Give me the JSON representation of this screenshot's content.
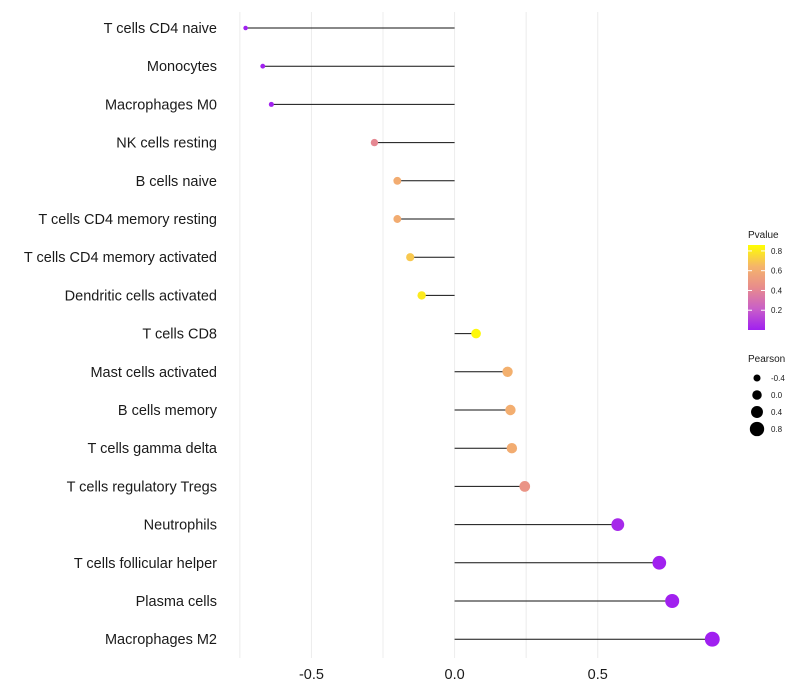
{
  "chart_data": {
    "type": "lollipop",
    "title": "",
    "xlabel": "",
    "ylabel": "",
    "xlim": [
      -0.76,
      0.92
    ],
    "xticks": [
      -0.5,
      0.0,
      0.5
    ],
    "xtick_labels": [
      "-0.5",
      "0.0",
      "0.5"
    ],
    "grid": true,
    "points": [
      {
        "label": "T cells CD4 naive",
        "pearson": -0.73,
        "pvalue": 0.002
      },
      {
        "label": "Monocytes",
        "pearson": -0.67,
        "pvalue": 0.006
      },
      {
        "label": "Macrophages M0",
        "pearson": -0.64,
        "pvalue": 0.008
      },
      {
        "label": "NK cells resting",
        "pearson": -0.28,
        "pvalue": 0.41
      },
      {
        "label": "B cells naive",
        "pearson": -0.2,
        "pvalue": 0.6
      },
      {
        "label": "T cells CD4 memory resting",
        "pearson": -0.2,
        "pvalue": 0.6
      },
      {
        "label": "T cells CD4 memory activated",
        "pearson": -0.155,
        "pvalue": 0.7
      },
      {
        "label": "Dendritic cells activated",
        "pearson": -0.115,
        "pvalue": 0.8
      },
      {
        "label": "T cells CD8",
        "pearson": 0.075,
        "pvalue": 0.84
      },
      {
        "label": "Mast cells activated",
        "pearson": 0.185,
        "pvalue": 0.62
      },
      {
        "label": "B cells memory",
        "pearson": 0.195,
        "pvalue": 0.61
      },
      {
        "label": "T cells gamma delta",
        "pearson": 0.2,
        "pvalue": 0.6
      },
      {
        "label": "T cells regulatory  Tregs ",
        "pearson": 0.245,
        "pvalue": 0.47
      },
      {
        "label": "Neutrophils",
        "pearson": 0.57,
        "pvalue": 0.03
      },
      {
        "label": "T cells follicular helper",
        "pearson": 0.715,
        "pvalue": 0.004
      },
      {
        "label": "Plasma cells",
        "pearson": 0.76,
        "pvalue": 0.003
      },
      {
        "label": "Macrophages M2",
        "pearson": 0.9,
        "pvalue": 0.0005
      }
    ],
    "legend": {
      "pvalue": {
        "title": "Pvalue",
        "ticks": [
          0.8,
          0.6,
          0.4,
          0.2
        ],
        "tick_labels": [
          "0.8",
          "0.6",
          "0.4",
          "0.2"
        ],
        "range": [
          0,
          0.86
        ],
        "colors_low_to_high": [
          "#a020f0",
          "#c95fc8",
          "#e88c8c",
          "#f5b56a",
          "#ffff00"
        ]
      },
      "pearson": {
        "title": "Pearson",
        "ticks": [
          -0.4,
          0.0,
          0.4,
          0.8
        ],
        "tick_labels": [
          "-0.4",
          "0.0",
          "0.4",
          "0.8"
        ]
      }
    }
  }
}
